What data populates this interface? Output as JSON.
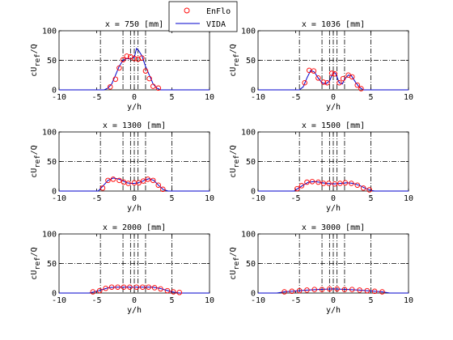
{
  "chart_data": {
    "type": "multi-panel line+scatter",
    "legend": {
      "placement": "top-center",
      "entries": [
        {
          "name": "EnFlo",
          "marker": "circle",
          "color": "#ff0000"
        },
        {
          "name": "VIDA",
          "marker": "line",
          "color": "#0000cc"
        }
      ]
    },
    "colors": {
      "enflo": "#ff0000",
      "vida": "#0000cc",
      "ref_lines": "#000000"
    },
    "panels": [
      {
        "title": "x = 750 [mm]",
        "xlabel": "y/h",
        "ylabel_main": "cU",
        "ylabel_sub": "ref",
        "ylabel_tail": "/Q",
        "xlim": [
          -10,
          10
        ],
        "ylim": [
          0,
          100
        ],
        "xticks": [
          "-10",
          "-5",
          "0",
          "5",
          "10"
        ],
        "yticks": [
          "0",
          "50",
          "100"
        ],
        "vlines": [
          -4.5,
          -1.5,
          -0.5,
          0,
          0.5,
          1.5
        ],
        "hline": 50,
        "enflo": [
          [
            -3.2,
            5
          ],
          [
            -2.5,
            18
          ],
          [
            -2.0,
            37
          ],
          [
            -1.5,
            51
          ],
          [
            -1.0,
            57
          ],
          [
            -0.5,
            56
          ],
          [
            0,
            53
          ],
          [
            0.5,
            52
          ],
          [
            1.0,
            54
          ],
          [
            1.5,
            32
          ],
          [
            2.0,
            19
          ],
          [
            2.5,
            6
          ],
          [
            3.2,
            3
          ]
        ],
        "vida": [
          [
            -10,
            0
          ],
          [
            -4,
            0
          ],
          [
            -3.5,
            3
          ],
          [
            -3,
            10
          ],
          [
            -2.5,
            25
          ],
          [
            -2,
            40
          ],
          [
            -1.5,
            50
          ],
          [
            -1,
            53
          ],
          [
            -0.5,
            52
          ],
          [
            0,
            55
          ],
          [
            0.3,
            70
          ],
          [
            0.6,
            66
          ],
          [
            1,
            58
          ],
          [
            1.5,
            40
          ],
          [
            2,
            25
          ],
          [
            2.5,
            10
          ],
          [
            3,
            3
          ],
          [
            3.5,
            0
          ],
          [
            10,
            0
          ]
        ]
      },
      {
        "title": "x = 1036 [mm]",
        "xlabel": "y/h",
        "ylabel_main": "cU",
        "ylabel_sub": "ref",
        "ylabel_tail": "/Q",
        "xlim": [
          -10,
          10
        ],
        "ylim": [
          0,
          100
        ],
        "xticks": [
          "-10",
          "-5",
          "0",
          "5",
          "10"
        ],
        "yticks": [
          "0",
          "50",
          "100"
        ],
        "vlines": [
          -4.5,
          -1.5,
          -0.5,
          0,
          0.5,
          1.5,
          5
        ],
        "hline": 50,
        "enflo": [
          [
            -3.8,
            12
          ],
          [
            -3.2,
            33
          ],
          [
            -2.6,
            32
          ],
          [
            -2.0,
            20
          ],
          [
            -1.3,
            13
          ],
          [
            -0.8,
            12
          ],
          [
            -0.2,
            28
          ],
          [
            0.2,
            27
          ],
          [
            0.8,
            12
          ],
          [
            1.3,
            19
          ],
          [
            2.0,
            25
          ],
          [
            2.5,
            22
          ],
          [
            3.2,
            8
          ],
          [
            3.7,
            2
          ]
        ],
        "vida": [
          [
            -10,
            0
          ],
          [
            -4.5,
            0
          ],
          [
            -4,
            5
          ],
          [
            -3.5,
            20
          ],
          [
            -3.0,
            33
          ],
          [
            -2.5,
            30
          ],
          [
            -2.0,
            20
          ],
          [
            -1.5,
            12
          ],
          [
            -1.0,
            10
          ],
          [
            -0.5,
            15
          ],
          [
            0,
            30
          ],
          [
            0.3,
            28
          ],
          [
            0.8,
            12
          ],
          [
            1.2,
            10
          ],
          [
            1.5,
            18
          ],
          [
            2.0,
            25
          ],
          [
            2.4,
            24
          ],
          [
            3.0,
            12
          ],
          [
            3.5,
            4
          ],
          [
            4,
            0
          ],
          [
            10,
            0
          ]
        ]
      },
      {
        "title": "x = 1300 [mm]",
        "xlabel": "y/h",
        "ylabel_main": "cU",
        "ylabel_sub": "ref",
        "ylabel_tail": "/Q",
        "xlim": [
          -10,
          10
        ],
        "ylim": [
          0,
          100
        ],
        "xticks": [
          "-10",
          "-5",
          "0",
          "5",
          "10"
        ],
        "yticks": [
          "0",
          "50",
          "100"
        ],
        "vlines": [
          -4.5,
          -1.5,
          -0.5,
          0,
          0.5,
          1.5,
          5
        ],
        "hline": 50,
        "enflo": [
          [
            -4.2,
            5
          ],
          [
            -3.5,
            18
          ],
          [
            -2.8,
            20
          ],
          [
            -2.0,
            18
          ],
          [
            -1.4,
            15
          ],
          [
            -0.8,
            13
          ],
          [
            0,
            14
          ],
          [
            0.6,
            14
          ],
          [
            1.2,
            17
          ],
          [
            1.8,
            20
          ],
          [
            2.5,
            18
          ],
          [
            3.2,
            10
          ],
          [
            3.8,
            3
          ]
        ],
        "vida": [
          [
            -10,
            0
          ],
          [
            -4.8,
            0
          ],
          [
            -4.2,
            8
          ],
          [
            -3.5,
            18
          ],
          [
            -2.8,
            22
          ],
          [
            -2.0,
            20
          ],
          [
            -1.5,
            17
          ],
          [
            -1.0,
            14
          ],
          [
            -0.5,
            13
          ],
          [
            0,
            13
          ],
          [
            0.5,
            14
          ],
          [
            1.0,
            16
          ],
          [
            1.5,
            19
          ],
          [
            2.0,
            21
          ],
          [
            2.6,
            18
          ],
          [
            3.2,
            10
          ],
          [
            3.8,
            3
          ],
          [
            4.5,
            0
          ],
          [
            10,
            0
          ]
        ]
      },
      {
        "title": "x = 1500 [mm]",
        "xlabel": "y/h",
        "ylabel_main": "cU",
        "ylabel_sub": "ref",
        "ylabel_tail": "/Q",
        "xlim": [
          -10,
          10
        ],
        "ylim": [
          0,
          100
        ],
        "xticks": [
          "-10",
          "-5",
          "0",
          "5",
          "10"
        ],
        "yticks": [
          "0",
          "50",
          "100"
        ],
        "vlines": [
          -4.5,
          -1.5,
          -0.5,
          0,
          0.5,
          1.5,
          5
        ],
        "hline": 50,
        "enflo": [
          [
            -4.8,
            4
          ],
          [
            -4.2,
            9
          ],
          [
            -3.5,
            15
          ],
          [
            -2.8,
            16
          ],
          [
            -2.0,
            15
          ],
          [
            -1.3,
            13
          ],
          [
            -0.6,
            13
          ],
          [
            0.2,
            12
          ],
          [
            0.9,
            13
          ],
          [
            1.6,
            14
          ],
          [
            2.4,
            13
          ],
          [
            3.2,
            10
          ],
          [
            4.0,
            5
          ],
          [
            4.8,
            2
          ]
        ],
        "vida": [
          [
            -10,
            0
          ],
          [
            -5.2,
            0
          ],
          [
            -4.6,
            5
          ],
          [
            -4.0,
            10
          ],
          [
            -3.3,
            15
          ],
          [
            -2.5,
            16
          ],
          [
            -1.8,
            15
          ],
          [
            -1.0,
            13
          ],
          [
            0,
            12
          ],
          [
            1.0,
            13
          ],
          [
            1.8,
            14
          ],
          [
            2.6,
            13
          ],
          [
            3.4,
            10
          ],
          [
            4.2,
            5
          ],
          [
            5.0,
            1
          ],
          [
            5.5,
            0
          ],
          [
            10,
            0
          ]
        ]
      },
      {
        "title": "x = 2000 [mm]",
        "xlabel": "y/h",
        "ylabel_main": "cU",
        "ylabel_sub": "ref",
        "ylabel_tail": "/Q",
        "xlim": [
          -10,
          10
        ],
        "ylim": [
          0,
          100
        ],
        "xticks": [
          "-10",
          "-5",
          "0",
          "5",
          "10"
        ],
        "yticks": [
          "0",
          "50",
          "100"
        ],
        "vlines": [
          -4.5,
          -1.5,
          -0.5,
          0,
          0.5,
          1.5,
          5
        ],
        "hline": 50,
        "enflo": [
          [
            -5.5,
            2
          ],
          [
            -4.6,
            4
          ],
          [
            -3.8,
            8
          ],
          [
            -3.0,
            10
          ],
          [
            -2.2,
            10
          ],
          [
            -1.4,
            10
          ],
          [
            -0.6,
            10
          ],
          [
            0.3,
            10
          ],
          [
            1.1,
            10
          ],
          [
            1.9,
            10
          ],
          [
            2.7,
            9
          ],
          [
            3.5,
            7
          ],
          [
            4.4,
            4
          ],
          [
            5.2,
            2
          ],
          [
            6.0,
            1
          ]
        ],
        "vida": [
          [
            -10,
            0
          ],
          [
            -6.0,
            0
          ],
          [
            -5.0,
            3
          ],
          [
            -4.2,
            6
          ],
          [
            -3.4,
            9
          ],
          [
            -2.4,
            10
          ],
          [
            -1.4,
            10
          ],
          [
            0,
            10
          ],
          [
            1.4,
            10
          ],
          [
            2.4,
            10
          ],
          [
            3.4,
            8
          ],
          [
            4.2,
            5
          ],
          [
            5.0,
            2
          ],
          [
            6.0,
            0
          ],
          [
            10,
            0
          ]
        ]
      },
      {
        "title": "x = 3000 [mm]",
        "xlabel": "y/h",
        "ylabel_main": "cU",
        "ylabel_sub": "ref",
        "ylabel_tail": "/Q",
        "xlim": [
          -10,
          10
        ],
        "ylim": [
          0,
          100
        ],
        "xticks": [
          "-10",
          "-5",
          "0",
          "5",
          "10"
        ],
        "yticks": [
          "0",
          "50",
          "100"
        ],
        "vlines": [
          -4.5,
          -1.5,
          -0.5,
          0,
          0.5,
          1.5,
          5
        ],
        "hline": 50,
        "enflo": [
          [
            -6.5,
            2
          ],
          [
            -5.5,
            3
          ],
          [
            -4.5,
            4
          ],
          [
            -3.5,
            5
          ],
          [
            -2.5,
            6
          ],
          [
            -1.5,
            6
          ],
          [
            -0.5,
            7
          ],
          [
            0.5,
            7
          ],
          [
            1.5,
            6
          ],
          [
            2.5,
            6
          ],
          [
            3.5,
            5
          ],
          [
            4.5,
            4
          ],
          [
            5.5,
            3
          ],
          [
            6.5,
            2
          ]
        ],
        "vida": [
          [
            -10,
            0
          ],
          [
            -7.5,
            0
          ],
          [
            -6.5,
            2
          ],
          [
            -5.5,
            3
          ],
          [
            -4.5,
            4
          ],
          [
            -3.5,
            5
          ],
          [
            -2.0,
            6
          ],
          [
            0,
            7
          ],
          [
            2.0,
            6
          ],
          [
            3.5,
            5
          ],
          [
            4.5,
            4
          ],
          [
            5.5,
            3
          ],
          [
            6.5,
            2
          ],
          [
            7.5,
            0
          ],
          [
            10,
            0
          ]
        ]
      }
    ]
  }
}
